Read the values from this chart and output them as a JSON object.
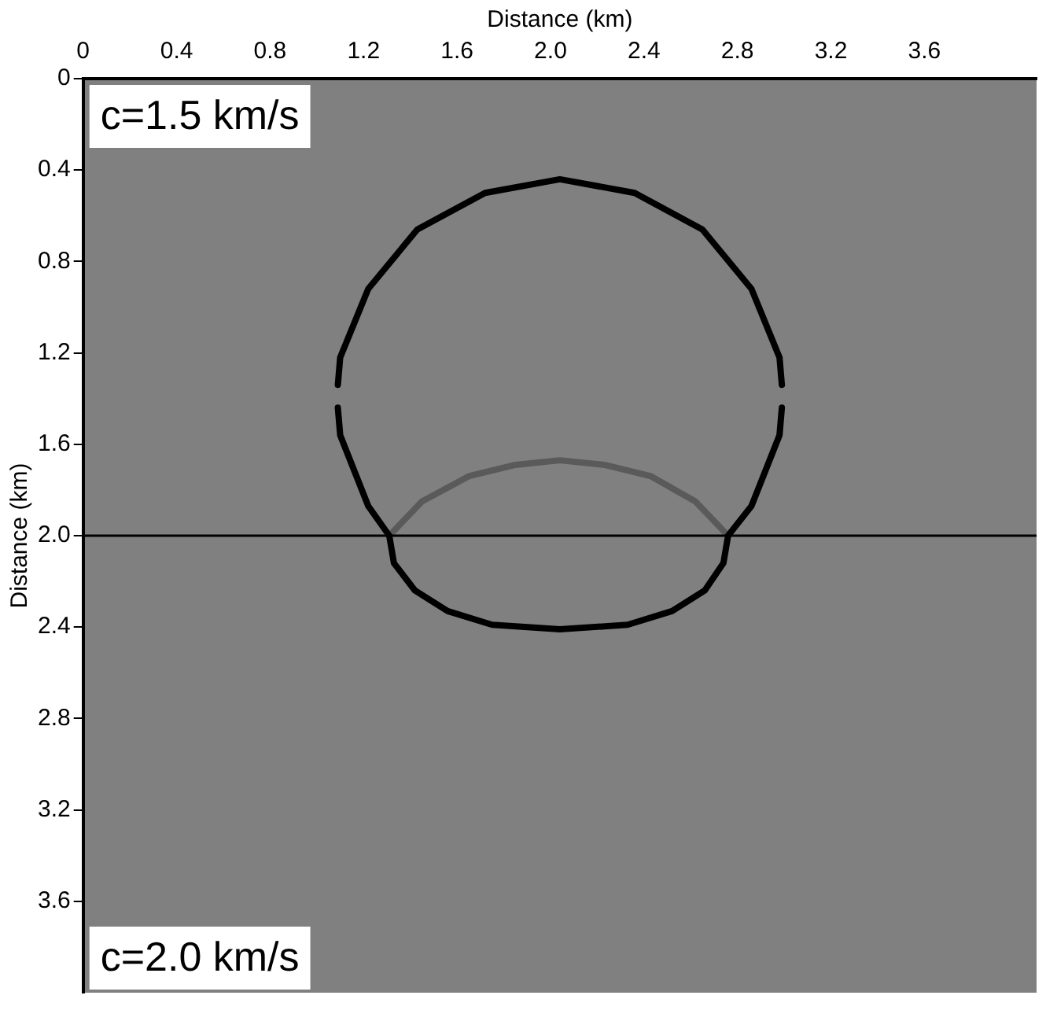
{
  "chart_data": {
    "type": "line",
    "xlabel": "Distance (km)",
    "ylabel": "Distance (km)",
    "xlim": [
      0,
      4.08
    ],
    "ylim": [
      4.0,
      0
    ],
    "xticks": [
      0,
      0.4,
      0.8,
      1.2,
      1.6,
      {
        "value": 2,
        "label": "2.0"
      },
      2.4,
      2.8,
      3.2,
      3.6
    ],
    "yticks": [
      0,
      0.4,
      0.8,
      1.2,
      1.6,
      {
        "value": 2,
        "label": "2.0"
      },
      2.4,
      2.8,
      3.2,
      3.6
    ],
    "marker": "none",
    "line_style": "solid",
    "grid": false,
    "legend": false,
    "series": [
      {
        "color": "#000000",
        "x": [
          1.09,
          1.1,
          1.22,
          1.43,
          1.72,
          2.04,
          2.36,
          2.65,
          2.86,
          2.98,
          2.99
        ],
        "values": [
          1.34,
          1.22,
          0.92,
          0.66,
          0.5,
          0.44,
          0.5,
          0.66,
          0.92,
          1.22,
          1.34
        ]
      },
      {
        "color": "#000000",
        "x": [
          1.09,
          1.1,
          1.22,
          1.31,
          1.33,
          1.42,
          1.56,
          1.75,
          2.04,
          2.33,
          2.52,
          2.66,
          2.74,
          2.76,
          2.86,
          2.98,
          2.99
        ],
        "values": [
          1.44,
          1.56,
          1.87,
          2.0,
          2.12,
          2.24,
          2.33,
          2.39,
          2.41,
          2.39,
          2.33,
          2.24,
          2.12,
          2.0,
          1.87,
          1.56,
          1.44
        ]
      },
      {
        "color": "#5a5a5a",
        "x": [
          1.31,
          1.45,
          1.65,
          1.85,
          2.04,
          2.23,
          2.43,
          2.62,
          2.76
        ],
        "values": [
          2.0,
          1.85,
          1.74,
          1.69,
          1.67,
          1.69,
          1.74,
          1.85,
          2.0
        ]
      }
    ],
    "ref_lines": [
      {
        "axis": "y",
        "value": 2.0,
        "color": "#000000"
      }
    ],
    "annotations": [
      "c=1.5 km/s",
      "c=2.0 km/s"
    ]
  }
}
